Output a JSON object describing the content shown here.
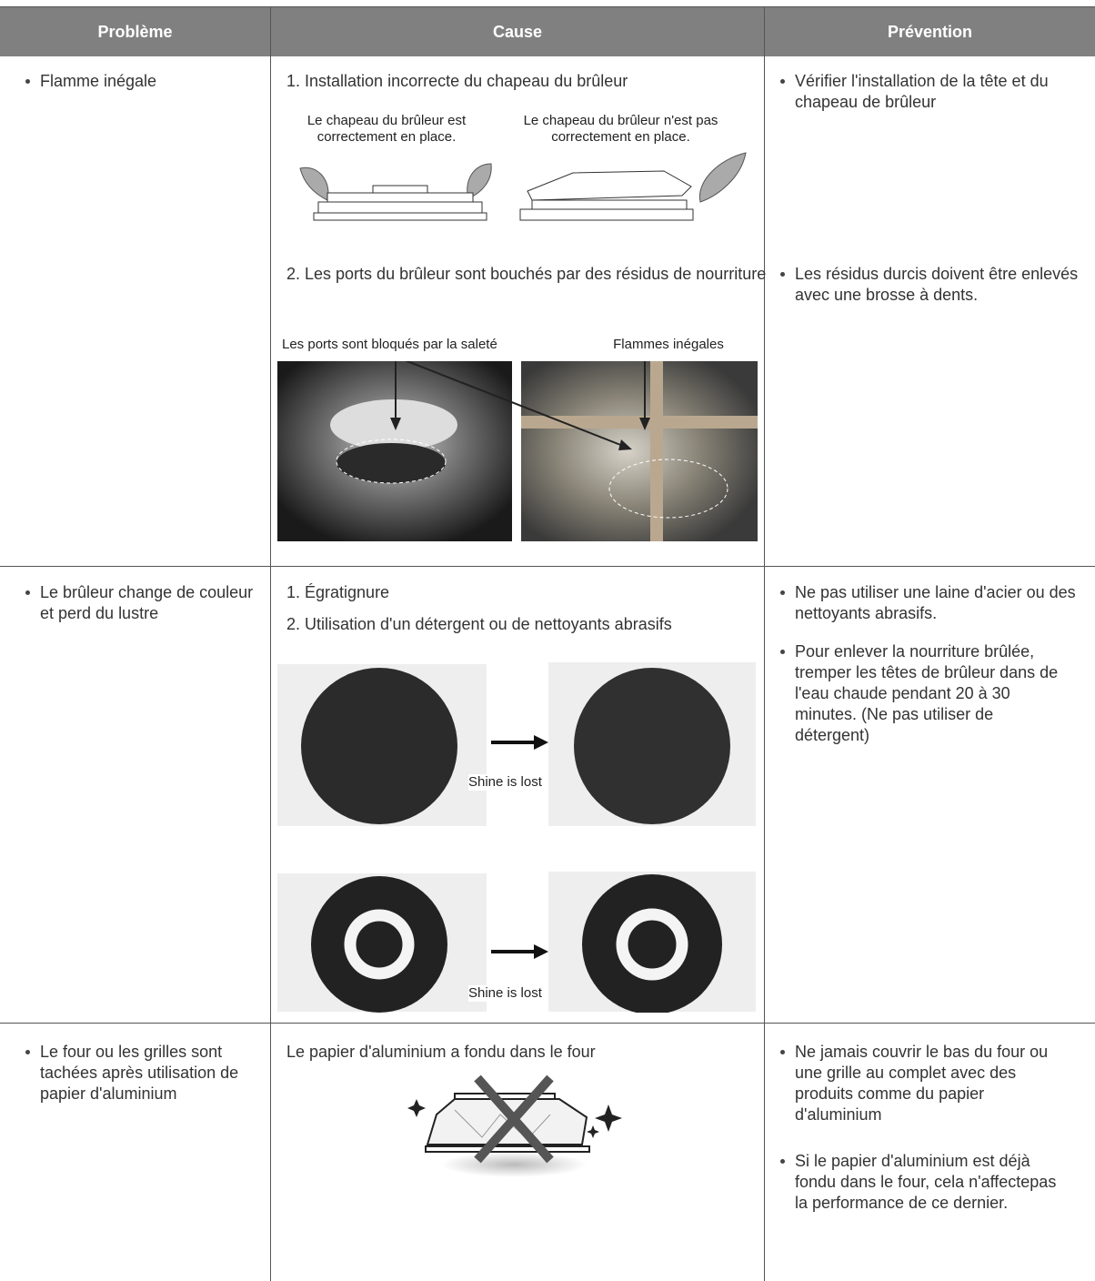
{
  "table": {
    "headers": [
      "Problème",
      "Cause",
      "Prévention"
    ],
    "rows": [
      {
        "problem": "Flamme inégale",
        "causes": [
          {
            "text": "1. Installation incorrecte du chapeau du brûleur",
            "captions": [
              "Le chapeau du brûleur est correctement en place.",
              "Le chapeau du brûleur n'est pas correctement en place."
            ]
          },
          {
            "text": "2. Les ports du brûleur sont bouchés par des résidus de nourriture",
            "captions": [
              "Les ports sont bloqués par la saleté",
              "Flammes inégales"
            ]
          }
        ],
        "prevention": [
          "Vérifier l'installation de la tête et du chapeau de brûleur",
          "Les résidus durcis doivent être enlevés avec une brosse à dents."
        ]
      },
      {
        "problem": "Le brûleur change de couleur et perd du lustre",
        "causes": [
          {
            "text": "1. Égratignure"
          },
          {
            "text": "2. Utilisation d'un détergent ou de nettoyants abrasifs"
          }
        ],
        "image_captions": [
          "Shine is lost",
          "Shine is lost"
        ],
        "prevention": [
          "Ne pas utiliser une laine d'acier ou des nettoyants abrasifs.",
          "Pour enlever la nourriture brûlée, tremper les têtes de brûleur dans de l'eau chaude pendant 20 à 30 minutes. (Ne pas utiliser de détergent)"
        ]
      },
      {
        "problem": "Le four ou les grilles sont tachées après utilisation de papier d'aluminium",
        "causes": [
          {
            "text": "Le papier d'aluminium a fondu dans le four"
          }
        ],
        "prevention": [
          "Ne jamais couvrir le bas du four ou une grille au complet avec des produits comme du papier d'aluminium",
          "Si le papier d'aluminium est déjà fondu dans le four, cela n'affectepas la performance de ce dernier."
        ]
      }
    ]
  }
}
